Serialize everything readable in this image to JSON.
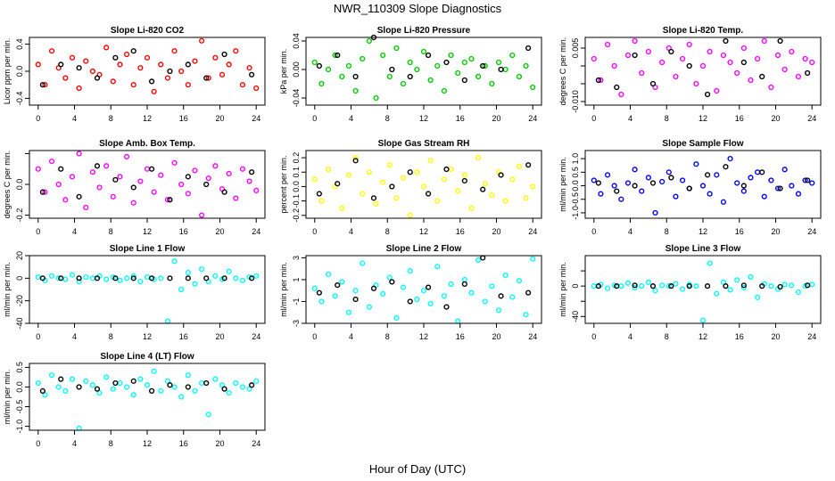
{
  "chart_data": {
    "type": "scatter",
    "title": "NWR_110309  Slope Diagnostics",
    "xlabel": "Hour of Day (UTC)",
    "xlim": [
      0,
      24
    ],
    "xticks": [
      0,
      4,
      8,
      12,
      16,
      20,
      24
    ],
    "x_all": [
      0,
      0.75,
      1.5,
      2.25,
      3,
      3.75,
      4.5,
      5.25,
      6,
      6.75,
      7.5,
      8.25,
      9,
      9.75,
      10.5,
      11.25,
      12,
      12.75,
      13.5,
      14.25,
      15,
      15.75,
      16.5,
      17.25,
      18,
      18.75,
      19.5,
      20.25,
      21,
      21.75,
      22.5,
      23.25,
      24
    ],
    "x_highlight": [
      0.5,
      2.5,
      4.5,
      6.5,
      8.5,
      10.5,
      12.5,
      14.5,
      16.5,
      18.5,
      20.5,
      23.5
    ],
    "highlight_color": "#000000",
    "panels": [
      {
        "title": "Slope Li-820 CO2",
        "ylabel": "Licor ppm per min.",
        "color": "#ff0000",
        "ylim": [
          -0.5,
          0.5
        ],
        "yticks": [
          -0.4,
          0,
          0.4
        ],
        "ytick_labels": [
          "-0.4",
          "0.0",
          "0.4"
        ],
        "all": [
          0.1,
          -0.2,
          0.3,
          0.05,
          -0.1,
          0.2,
          -0.25,
          0.15,
          0.0,
          -0.05,
          0.35,
          -0.15,
          0.1,
          0.25,
          -0.2,
          0.05,
          0.2,
          -0.3,
          0.1,
          -0.1,
          0.3,
          0.0,
          -0.2,
          0.15,
          0.45,
          -0.1,
          0.2,
          -0.05,
          0.1,
          0.3,
          -0.2,
          0.05,
          -0.25
        ],
        "highlight": [
          -0.2,
          0.1,
          0.05,
          -0.1,
          0.2,
          0.3,
          -0.15,
          0.0,
          0.1,
          -0.1,
          0.25,
          -0.05
        ]
      },
      {
        "title": "Slope Li-820 Pressure",
        "ylabel": "kPa per min.",
        "color": "#00cd00",
        "ylim": [
          -0.05,
          0.045
        ],
        "yticks": [
          -0.04,
          0,
          0.04
        ],
        "ytick_labels": [
          "-0.04",
          "0.00",
          "0.04"
        ],
        "all": [
          0.01,
          -0.02,
          0.0,
          0.02,
          -0.01,
          0.005,
          -0.03,
          0.015,
          0.04,
          -0.04,
          0.02,
          -0.01,
          0.03,
          -0.02,
          0.01,
          0.0,
          0.025,
          -0.015,
          0.005,
          -0.03,
          0.02,
          -0.005,
          0.01,
          0.015,
          -0.01,
          0.005,
          -0.02,
          0.01,
          0.0,
          0.02,
          -0.01,
          0.005,
          -0.025
        ],
        "highlight": [
          0.005,
          0.02,
          -0.01,
          0.045,
          0.0,
          -0.01,
          0.02,
          0.01,
          -0.015,
          0.005,
          0.0,
          0.03
        ]
      },
      {
        "title": "Slope Li-820 Temp.",
        "ylabel": "degrees C per min.",
        "color": "#ff00ff",
        "ylim": [
          -0.011,
          0.008
        ],
        "yticks": [
          -0.01,
          -0.005,
          0,
          0.005
        ],
        "ytick_labels": [
          "-0.010",
          "",
          "",
          "0.005"
        ],
        "all": [
          0.002,
          -0.004,
          0.006,
          0.0,
          -0.008,
          0.003,
          0.007,
          -0.002,
          0.004,
          -0.006,
          0.001,
          0.005,
          -0.003,
          0.002,
          0.006,
          -0.005,
          0.0,
          0.004,
          -0.007,
          0.003,
          0.001,
          -0.002,
          0.005,
          -0.004,
          0.002,
          0.007,
          -0.006,
          0.003,
          -0.001,
          0.004,
          -0.003,
          0.002,
          0.001
        ],
        "highlight": [
          -0.004,
          -0.006,
          0.003,
          -0.005,
          0.004,
          0.0,
          -0.008,
          0.007,
          0.001,
          -0.003,
          0.007,
          -0.002
        ]
      },
      {
        "title": "Slope Amb. Box Temp.",
        "ylabel": "degrees C per min.",
        "color": "#ff00ff",
        "ylim": [
          -0.22,
          0.22
        ],
        "yticks": [
          -0.2,
          0,
          0.2
        ],
        "ytick_labels": [
          "-0.2",
          "0.0",
          ""
        ],
        "all": [
          0.1,
          -0.05,
          0.15,
          0.0,
          -0.1,
          0.05,
          0.2,
          -0.15,
          0.08,
          -0.02,
          0.12,
          -0.08,
          0.05,
          0.18,
          -0.12,
          0.02,
          0.1,
          -0.05,
          0.06,
          -0.1,
          0.14,
          0.0,
          -0.06,
          0.09,
          -0.2,
          0.04,
          0.12,
          -0.03,
          0.07,
          -0.09,
          0.1,
          0.02,
          -0.04
        ],
        "highlight": [
          -0.05,
          0.1,
          -0.08,
          0.12,
          0.03,
          -0.02,
          0.1,
          -0.1,
          0.05,
          0.0,
          -0.05,
          0.08
        ]
      },
      {
        "title": "Slope Gas Stream RH",
        "ylabel": "percent per min.",
        "color": "#ffff00",
        "ylim": [
          -0.22,
          0.25
        ],
        "yticks": [
          -0.2,
          -0.1,
          0,
          0.1,
          0.2
        ],
        "ytick_labels": [
          "-0.2",
          "-0.1",
          "0.0",
          "0.1",
          "0.2"
        ],
        "all": [
          0.05,
          -0.1,
          0.12,
          0.0,
          -0.15,
          0.08,
          0.2,
          -0.05,
          0.1,
          -0.12,
          0.03,
          0.15,
          -0.08,
          0.06,
          -0.2,
          0.1,
          0.0,
          0.18,
          -0.1,
          0.05,
          0.12,
          -0.03,
          0.08,
          -0.15,
          0.2,
          0.02,
          -0.06,
          0.1,
          -0.1,
          0.05,
          0.14,
          -0.08,
          0.0
        ],
        "highlight": [
          -0.05,
          0.02,
          0.18,
          -0.08,
          0.0,
          0.1,
          -0.05,
          0.12,
          0.04,
          -0.02,
          0.08,
          0.15
        ]
      },
      {
        "title": "Slope Sample Flow",
        "ylabel": "ml/min per min.",
        "color": "#0000ff",
        "ylim": [
          -1.2,
          1.3
        ],
        "yticks": [
          -1,
          -0.5,
          0,
          0.5,
          1
        ],
        "ytick_labels": [
          "-1.0",
          "-0.5",
          "0.0",
          "0.5",
          "1.0"
        ],
        "all": [
          0.2,
          -0.3,
          0.4,
          0.0,
          -0.5,
          0.1,
          0.6,
          -0.2,
          0.3,
          -1.0,
          0.15,
          0.5,
          -0.4,
          0.2,
          -0.1,
          0.8,
          0.0,
          -0.3,
          0.4,
          -0.6,
          1.0,
          0.1,
          -0.2,
          0.3,
          0.5,
          -0.4,
          0.2,
          -0.1,
          0.6,
          0.0,
          -0.3,
          0.2,
          0.1
        ],
        "highlight": [
          0.1,
          -0.2,
          0.0,
          0.1,
          0.3,
          -0.1,
          0.4,
          0.7,
          0.0,
          0.5,
          -0.1,
          0.2
        ]
      },
      {
        "title": "Slope Line 1 Flow",
        "ylabel": "ml/min per min.",
        "color": "#00ffff",
        "ylim": [
          -40,
          20
        ],
        "yticks": [
          -40,
          -20,
          0,
          20
        ],
        "ytick_labels": [
          "-40",
          "-20",
          "0",
          "20"
        ],
        "all": [
          1,
          -2,
          2,
          0,
          -1,
          3,
          -3,
          1,
          0,
          2,
          -1,
          1,
          -2,
          0,
          2,
          -3,
          1,
          -1,
          0,
          -38,
          15,
          -10,
          5,
          -5,
          8,
          -3,
          2,
          -1,
          6,
          0,
          -2,
          1,
          2
        ],
        "highlight": [
          0,
          0,
          0,
          0,
          0,
          0,
          0,
          0,
          0,
          0,
          0,
          0
        ]
      },
      {
        "title": "Slope Line 2 Flow",
        "ylabel": "ml/min per min.",
        "color": "#00ffff",
        "ylim": [
          -3,
          3.2
        ],
        "yticks": [
          -3,
          -1,
          1,
          3
        ],
        "ytick_labels": [
          "-3",
          "-1",
          "1",
          "3"
        ],
        "all": [
          0.2,
          -1.0,
          1.5,
          -0.5,
          0.8,
          -2.0,
          0.0,
          2.5,
          -1.5,
          0.5,
          -0.3,
          1.2,
          -2.5,
          0.3,
          1.8,
          -0.8,
          0.0,
          -1.2,
          2.2,
          -0.5,
          0.6,
          -2.8,
          1.0,
          -0.2,
          2.8,
          -1.0,
          0.4,
          -1.8,
          1.4,
          -0.6,
          0.9,
          -2.2,
          2.9
        ],
        "highlight": [
          -0.2,
          0.5,
          -0.8,
          0.2,
          0.8,
          -1.0,
          0.3,
          -1.5,
          0.6,
          3.0,
          -0.5,
          -0.2
        ]
      },
      {
        "title": "Slope Line 3 Flow",
        "ylabel": "ml/min per min.",
        "color": "#00ffff",
        "ylim": [
          -49,
          40
        ],
        "yticks": [
          -40,
          -20,
          0,
          20
        ],
        "ytick_labels": [
          "-40",
          "",
          "0",
          ""
        ],
        "all": [
          0,
          2,
          -3,
          1,
          0,
          4,
          -2,
          0,
          5,
          -6,
          1,
          0,
          3,
          -4,
          2,
          0,
          -45,
          30,
          -10,
          5,
          -5,
          8,
          -2,
          12,
          -15,
          3,
          0,
          -4,
          2,
          1,
          -8,
          0,
          2
        ],
        "highlight": [
          0,
          0,
          1,
          0,
          0,
          0,
          0,
          0,
          1,
          0,
          -1,
          1
        ]
      },
      {
        "title": "Slope Line 4 (LT) Flow",
        "ylabel": "ml/min per min.",
        "color": "#00ffff",
        "ylim": [
          -1.1,
          0.6
        ],
        "yticks": [
          -1,
          -0.5,
          0,
          0.5
        ],
        "ytick_labels": [
          "-1.0",
          "-0.5",
          "0.0",
          "0.5"
        ],
        "all": [
          0.1,
          -0.2,
          0.3,
          0.0,
          -0.1,
          0.2,
          -1.05,
          0.15,
          0.05,
          -0.15,
          0.25,
          -0.05,
          0.1,
          0.0,
          -0.2,
          0.2,
          0.05,
          0.4,
          -0.1,
          0.15,
          0.0,
          -0.25,
          0.3,
          -0.1,
          0.1,
          -0.7,
          0.2,
          0.05,
          -0.15,
          0.1,
          0.0,
          -0.05,
          0.15
        ],
        "highlight": [
          -0.1,
          0.2,
          0.0,
          -0.05,
          0.1,
          0.15,
          -0.1,
          0.05,
          0.0,
          0.1,
          -0.05,
          0.05
        ]
      }
    ]
  }
}
